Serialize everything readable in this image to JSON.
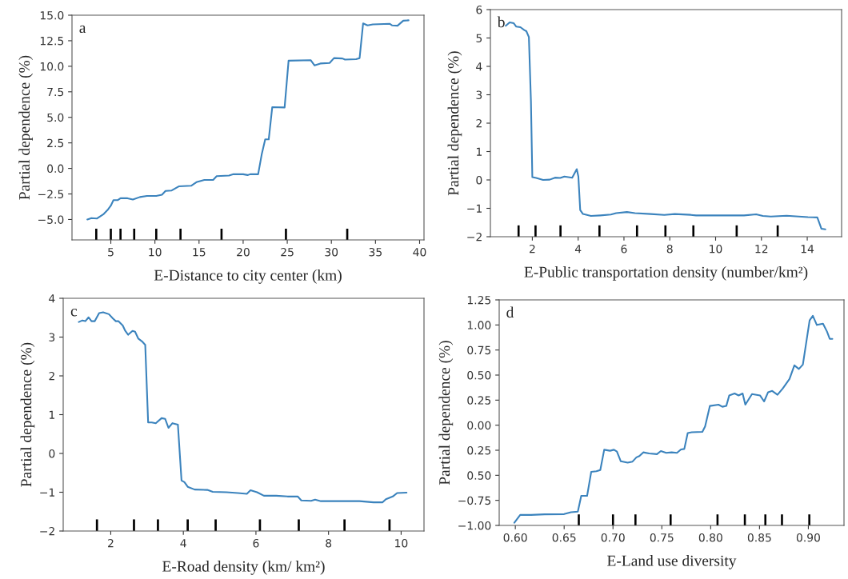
{
  "chart_data": [
    {
      "type": "line",
      "xlabel": "E-Distance to city center (km)",
      "ylabel": "Partial dependence (%)",
      "annotations": [
        "a"
      ],
      "series": [
        {
          "color": "#3b83bd",
          "x": [
            2.34,
            2.8,
            3.44,
            4.2,
            4.7,
            5.0,
            5.3,
            5.8,
            6.1,
            6.9,
            7.5,
            8.3,
            9.1,
            10.15,
            10.8,
            11.2,
            11.9,
            12.7,
            14.1,
            14.7,
            15.6,
            16.6,
            17.0,
            18.4,
            18.9,
            20.0,
            20.5,
            20.8,
            21.7,
            22.1,
            22.5,
            22.9,
            23.3,
            24.7,
            25.15,
            27.65,
            28.1,
            28.75,
            29.8,
            30.3,
            31.25,
            31.55,
            32.8,
            33.2,
            33.6,
            34.1,
            34.7,
            36.6,
            36.9,
            37.5,
            38.15,
            38.75
          ],
          "values": [
            -5.0,
            -4.86,
            -4.9,
            -4.46,
            -4.0,
            -3.65,
            -3.1,
            -3.1,
            -2.92,
            -2.92,
            -3.05,
            -2.8,
            -2.7,
            -2.7,
            -2.57,
            -2.2,
            -2.16,
            -1.76,
            -1.7,
            -1.35,
            -1.13,
            -1.13,
            -0.76,
            -0.7,
            -0.57,
            -0.57,
            -0.65,
            -0.57,
            -0.57,
            1.35,
            2.84,
            2.84,
            6.0,
            5.97,
            10.55,
            10.6,
            10.08,
            10.27,
            10.32,
            10.8,
            10.76,
            10.65,
            10.7,
            10.8,
            14.2,
            14.0,
            14.1,
            14.16,
            14.0,
            13.97,
            14.46,
            14.5
          ]
        },
        {
          "type": "bar",
          "color": "#000000",
          "x": [
            3.35,
            5.0,
            6.1,
            7.65,
            10.15,
            12.9,
            17.55,
            24.85,
            31.8
          ],
          "base": [
            -7.0,
            -7.0,
            -7.0,
            -7.0,
            -7.0,
            -7.0,
            -7.0,
            -7.0,
            -7.0
          ],
          "values": [
            1.1,
            1.1,
            1.1,
            1.1,
            1.1,
            1.1,
            1.1,
            1.1,
            1.1
          ]
        }
      ],
      "xlim": [
        0.6,
        40.5
      ],
      "ylim": [
        -7.0,
        15.0
      ],
      "xticks": [
        5,
        10,
        15,
        20,
        25,
        30,
        35,
        40
      ],
      "yticks": [
        {
          "value": -5,
          "label": "−5.0"
        },
        {
          "value": -2.5,
          "label": "−2.5"
        },
        {
          "value": 0,
          "label": "0.0"
        },
        {
          "value": 2.5,
          "label": "2.5"
        },
        {
          "value": 5,
          "label": "5.0"
        },
        {
          "value": 7.5,
          "label": "7.5"
        },
        {
          "value": 10,
          "label": "10.0"
        },
        {
          "value": 12.5,
          "label": "12.5"
        },
        {
          "value": 15,
          "label": "15.0"
        }
      ]
    },
    {
      "type": "line",
      "xlabel": "E-Public transportation density (number/km²)",
      "ylabel": "Partial dependence (%)",
      "annotations": [
        "b"
      ],
      "series": [
        {
          "color": "#3b83bd",
          "x": [
            0.84,
            1.01,
            1.19,
            1.3,
            1.48,
            1.65,
            1.74,
            1.85,
            1.94,
            2.0,
            2.17,
            2.47,
            2.76,
            2.99,
            3.22,
            3.4,
            3.74,
            3.94,
            4.01,
            4.09,
            4.21,
            4.56,
            4.97,
            5.43,
            5.66,
            6.13,
            6.48,
            7.17,
            7.76,
            8.22,
            8.92,
            9.15,
            10.08,
            11.24,
            11.77,
            12.06,
            12.41,
            13.1,
            14.03,
            14.44,
            14.62,
            14.79
          ],
          "values": [
            5.43,
            5.55,
            5.52,
            5.4,
            5.38,
            5.28,
            5.24,
            5.03,
            2.76,
            0.1,
            0.07,
            0.0,
            0.01,
            0.08,
            0.07,
            0.12,
            0.08,
            0.38,
            0.12,
            -1.06,
            -1.2,
            -1.27,
            -1.25,
            -1.22,
            -1.17,
            -1.13,
            -1.17,
            -1.2,
            -1.23,
            -1.2,
            -1.23,
            -1.25,
            -1.25,
            -1.25,
            -1.21,
            -1.27,
            -1.29,
            -1.26,
            -1.31,
            -1.32,
            -1.72,
            -1.74
          ]
        },
        {
          "type": "bar",
          "color": "#000000",
          "x": [
            1.4,
            2.14,
            3.23,
            4.93,
            6.57,
            7.81,
            9.03,
            10.92,
            12.71
          ],
          "base": [
            -2,
            -2,
            -2,
            -2,
            -2,
            -2,
            -2,
            -2,
            -2
          ],
          "values": [
            0.4,
            0.4,
            0.4,
            0.4,
            0.4,
            0.4,
            0.4,
            0.4,
            0.4
          ]
        }
      ],
      "xlim": [
        0.17,
        15.5
      ],
      "ylim": [
        -2,
        6
      ],
      "xticks": [
        2,
        4,
        6,
        8,
        10,
        12,
        14
      ],
      "yticks": [
        -2,
        -1,
        0,
        1,
        2,
        3,
        4,
        5,
        6
      ]
    },
    {
      "type": "line",
      "xlabel": "E-Road density (km/ km²)",
      "ylabel": "Partial dependence (%)",
      "annotations": [
        "c"
      ],
      "series": [
        {
          "color": "#3b83bd",
          "x": [
            1.12,
            1.22,
            1.3,
            1.39,
            1.47,
            1.56,
            1.68,
            1.79,
            1.95,
            2.06,
            2.14,
            2.21,
            2.33,
            2.4,
            2.48,
            2.6,
            2.67,
            2.76,
            2.86,
            2.95,
            3.03,
            3.13,
            3.24,
            3.4,
            3.5,
            3.59,
            3.7,
            3.85,
            3.95,
            4.03,
            4.12,
            4.31,
            4.66,
            4.81,
            5.19,
            5.5,
            5.75,
            5.85,
            6.03,
            6.22,
            6.56,
            6.87,
            7.15,
            7.25,
            7.52,
            7.63,
            7.79,
            8.47,
            8.85,
            9.24,
            9.49,
            9.58,
            9.77,
            9.89,
            10.15
          ],
          "values": [
            3.39,
            3.43,
            3.41,
            3.51,
            3.41,
            3.41,
            3.62,
            3.64,
            3.59,
            3.48,
            3.41,
            3.41,
            3.3,
            3.16,
            3.06,
            3.16,
            3.14,
            2.96,
            2.89,
            2.8,
            0.8,
            0.8,
            0.78,
            0.91,
            0.89,
            0.66,
            0.78,
            0.74,
            -0.7,
            -0.74,
            -0.86,
            -0.93,
            -0.94,
            -0.99,
            -1.0,
            -1.02,
            -1.04,
            -0.95,
            -1.0,
            -1.09,
            -1.09,
            -1.11,
            -1.11,
            -1.21,
            -1.22,
            -1.19,
            -1.23,
            -1.23,
            -1.23,
            -1.26,
            -1.26,
            -1.18,
            -1.11,
            -1.02,
            -1.01
          ]
        },
        {
          "type": "bar",
          "color": "#000000",
          "x": [
            1.62,
            2.64,
            3.3,
            4.12,
            4.89,
            6.11,
            7.18,
            8.44,
            9.68
          ],
          "base": [
            -2,
            -2,
            -2,
            -2,
            -2,
            -2,
            -2,
            -2,
            -2
          ],
          "values": [
            0.3,
            0.3,
            0.3,
            0.3,
            0.3,
            0.3,
            0.3,
            0.3,
            0.3
          ]
        }
      ],
      "xlim": [
        0.69,
        10.63
      ],
      "ylim": [
        -2,
        4
      ],
      "xticks": [
        2,
        4,
        6,
        8,
        10
      ],
      "yticks": [
        -2,
        -1,
        0,
        1,
        2,
        3,
        4
      ]
    },
    {
      "type": "line",
      "xlabel": "E-Land use diversity",
      "ylabel": "Partial dependence (%)",
      "annotations": [
        "d"
      ],
      "series": [
        {
          "color": "#3b83bd",
          "x": [
            0.599,
            0.605,
            0.616,
            0.63,
            0.65,
            0.657,
            0.664,
            0.6675,
            0.6735,
            0.6777,
            0.683,
            0.687,
            0.691,
            0.697,
            0.701,
            0.704,
            0.708,
            0.715,
            0.72,
            0.724,
            0.727,
            0.731,
            0.737,
            0.745,
            0.749,
            0.7545,
            0.76,
            0.7655,
            0.7696,
            0.773,
            0.7765,
            0.7806,
            0.7915,
            0.7943,
            0.7992,
            0.808,
            0.812,
            0.816,
            0.819,
            0.8245,
            0.8286,
            0.8327,
            0.8355,
            0.8423,
            0.8505,
            0.8547,
            0.8588,
            0.863,
            0.8684,
            0.8739,
            0.8807,
            0.8857,
            0.8903,
            0.8944,
            0.9013,
            0.9046,
            0.9087,
            0.915,
            0.9191,
            0.9219,
            0.9246
          ],
          "values": [
            -0.974,
            -0.895,
            -0.895,
            -0.889,
            -0.887,
            -0.868,
            -0.863,
            -0.705,
            -0.705,
            -0.466,
            -0.46,
            -0.447,
            -0.245,
            -0.255,
            -0.245,
            -0.263,
            -0.36,
            -0.374,
            -0.363,
            -0.321,
            -0.308,
            -0.271,
            -0.282,
            -0.289,
            -0.258,
            -0.276,
            -0.271,
            -0.276,
            -0.242,
            -0.237,
            -0.079,
            -0.071,
            -0.066,
            -0.013,
            0.192,
            0.205,
            0.184,
            0.192,
            0.297,
            0.316,
            0.297,
            0.316,
            0.205,
            0.311,
            0.297,
            0.237,
            0.329,
            0.342,
            0.303,
            0.368,
            0.461,
            0.597,
            0.561,
            0.605,
            1.045,
            1.092,
            1.0,
            1.013,
            0.934,
            0.861,
            0.861
          ]
        },
        {
          "type": "bar",
          "color": "#000000",
          "x": [
            0.665,
            0.7,
            0.723,
            0.759,
            0.807,
            0.835,
            0.856,
            0.873,
            0.901
          ],
          "base": [
            -1.0,
            -1.0,
            -1.0,
            -1.0,
            -1.0,
            -1.0,
            -1.0,
            -1.0,
            -1.0
          ],
          "values": [
            0.11,
            0.11,
            0.11,
            0.11,
            0.11,
            0.11,
            0.11,
            0.11,
            0.11
          ]
        }
      ],
      "xlim": [
        0.5835,
        0.9365
      ],
      "ylim": [
        -1.0,
        1.25
      ],
      "xticks": [
        {
          "value": 0.6,
          "label": "0.60"
        },
        {
          "value": 0.65,
          "label": "0.65"
        },
        {
          "value": 0.7,
          "label": "0.70"
        },
        {
          "value": 0.75,
          "label": "0.75"
        },
        {
          "value": 0.8,
          "label": "0.80"
        },
        {
          "value": 0.85,
          "label": "0.85"
        },
        {
          "value": 0.9,
          "label": "0.90"
        }
      ],
      "yticks": [
        {
          "value": -1.0,
          "label": "−1.00"
        },
        {
          "value": -0.75,
          "label": "−0.75"
        },
        {
          "value": -0.5,
          "label": "0.50"
        },
        {
          "value": -0.25,
          "label": "0.25"
        },
        {
          "value": 0.0,
          "label": "0.00"
        },
        {
          "value": 0.25,
          "label": "0.25"
        },
        {
          "value": 0.5,
          "label": "0.50"
        },
        {
          "value": 0.75,
          "label": "0.75"
        },
        {
          "value": 1.0,
          "label": "1.00"
        },
        {
          "value": 1.25,
          "label": "1.25"
        }
      ]
    }
  ]
}
